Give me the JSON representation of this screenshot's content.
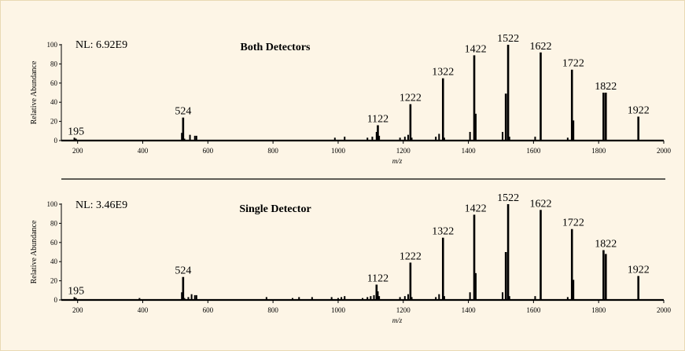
{
  "chart_data": [
    {
      "type": "bar",
      "title": "Both Detectors",
      "annotation": "NL: 6.92E9",
      "xlabel": "m/z",
      "ylabel": "Relative Abundance",
      "xlim": [
        150,
        2000
      ],
      "ylim": [
        0,
        100
      ],
      "xticks": [
        200,
        400,
        600,
        800,
        1000,
        1200,
        1400,
        1600,
        1800,
        2000
      ],
      "yticks": [
        0,
        20,
        40,
        60,
        80,
        100
      ],
      "peaks": [
        {
          "x": 190,
          "y": 3
        },
        {
          "x": 195,
          "y": 2
        },
        {
          "x": 520,
          "y": 8
        },
        {
          "x": 524,
          "y": 24
        },
        {
          "x": 528,
          "y": 2
        },
        {
          "x": 545,
          "y": 6
        },
        {
          "x": 560,
          "y": 5
        },
        {
          "x": 565,
          "y": 5
        },
        {
          "x": 990,
          "y": 3
        },
        {
          "x": 1020,
          "y": 4
        },
        {
          "x": 1090,
          "y": 3
        },
        {
          "x": 1105,
          "y": 4
        },
        {
          "x": 1118,
          "y": 9
        },
        {
          "x": 1122,
          "y": 16
        },
        {
          "x": 1126,
          "y": 5
        },
        {
          "x": 1190,
          "y": 3
        },
        {
          "x": 1205,
          "y": 4
        },
        {
          "x": 1215,
          "y": 6
        },
        {
          "x": 1222,
          "y": 38
        },
        {
          "x": 1226,
          "y": 3
        },
        {
          "x": 1300,
          "y": 4
        },
        {
          "x": 1310,
          "y": 7
        },
        {
          "x": 1322,
          "y": 65
        },
        {
          "x": 1326,
          "y": 3
        },
        {
          "x": 1405,
          "y": 9
        },
        {
          "x": 1418,
          "y": 89
        },
        {
          "x": 1422,
          "y": 28
        },
        {
          "x": 1505,
          "y": 9
        },
        {
          "x": 1515,
          "y": 49
        },
        {
          "x": 1522,
          "y": 100
        },
        {
          "x": 1526,
          "y": 4
        },
        {
          "x": 1605,
          "y": 4
        },
        {
          "x": 1622,
          "y": 92
        },
        {
          "x": 1705,
          "y": 3
        },
        {
          "x": 1718,
          "y": 74
        },
        {
          "x": 1722,
          "y": 21
        },
        {
          "x": 1815,
          "y": 50
        },
        {
          "x": 1822,
          "y": 50
        },
        {
          "x": 1922,
          "y": 25
        }
      ],
      "peak_labels": [
        {
          "x": 195,
          "y": 3,
          "label": "195"
        },
        {
          "x": 524,
          "y": 24,
          "label": "524"
        },
        {
          "x": 1122,
          "y": 16,
          "label": "1122"
        },
        {
          "x": 1222,
          "y": 38,
          "label": "1222"
        },
        {
          "x": 1322,
          "y": 65,
          "label": "1322"
        },
        {
          "x": 1422,
          "y": 89,
          "label": "1422"
        },
        {
          "x": 1522,
          "y": 100,
          "label": "1522"
        },
        {
          "x": 1622,
          "y": 92,
          "label": "1622"
        },
        {
          "x": 1722,
          "y": 74,
          "label": "1722"
        },
        {
          "x": 1822,
          "y": 50,
          "label": "1822"
        },
        {
          "x": 1922,
          "y": 25,
          "label": "1922"
        }
      ]
    },
    {
      "type": "bar",
      "title": "Single Detector",
      "annotation": "NL: 3.46E9",
      "xlabel": "m/z",
      "ylabel": "Relative Abundance",
      "xlim": [
        150,
        2000
      ],
      "ylim": [
        0,
        100
      ],
      "xticks": [
        200,
        400,
        600,
        800,
        1000,
        1200,
        1400,
        1600,
        1800,
        2000
      ],
      "yticks": [
        0,
        20,
        40,
        60,
        80,
        100
      ],
      "peaks": [
        {
          "x": 190,
          "y": 3
        },
        {
          "x": 195,
          "y": 2
        },
        {
          "x": 390,
          "y": 2
        },
        {
          "x": 520,
          "y": 8
        },
        {
          "x": 524,
          "y": 24
        },
        {
          "x": 528,
          "y": 2
        },
        {
          "x": 540,
          "y": 3
        },
        {
          "x": 550,
          "y": 6
        },
        {
          "x": 560,
          "y": 5
        },
        {
          "x": 565,
          "y": 5
        },
        {
          "x": 780,
          "y": 3
        },
        {
          "x": 860,
          "y": 2
        },
        {
          "x": 880,
          "y": 3
        },
        {
          "x": 920,
          "y": 3
        },
        {
          "x": 980,
          "y": 3
        },
        {
          "x": 1000,
          "y": 2
        },
        {
          "x": 1010,
          "y": 3
        },
        {
          "x": 1020,
          "y": 4
        },
        {
          "x": 1075,
          "y": 2
        },
        {
          "x": 1090,
          "y": 3
        },
        {
          "x": 1100,
          "y": 4
        },
        {
          "x": 1110,
          "y": 5
        },
        {
          "x": 1118,
          "y": 16
        },
        {
          "x": 1122,
          "y": 9
        },
        {
          "x": 1126,
          "y": 4
        },
        {
          "x": 1190,
          "y": 3
        },
        {
          "x": 1205,
          "y": 4
        },
        {
          "x": 1215,
          "y": 6
        },
        {
          "x": 1222,
          "y": 39
        },
        {
          "x": 1226,
          "y": 3
        },
        {
          "x": 1300,
          "y": 3
        },
        {
          "x": 1310,
          "y": 6
        },
        {
          "x": 1322,
          "y": 65
        },
        {
          "x": 1326,
          "y": 4
        },
        {
          "x": 1405,
          "y": 8
        },
        {
          "x": 1418,
          "y": 89
        },
        {
          "x": 1422,
          "y": 28
        },
        {
          "x": 1505,
          "y": 8
        },
        {
          "x": 1515,
          "y": 50
        },
        {
          "x": 1522,
          "y": 100
        },
        {
          "x": 1526,
          "y": 4
        },
        {
          "x": 1605,
          "y": 4
        },
        {
          "x": 1622,
          "y": 94
        },
        {
          "x": 1705,
          "y": 3
        },
        {
          "x": 1718,
          "y": 74
        },
        {
          "x": 1722,
          "y": 21
        },
        {
          "x": 1815,
          "y": 52
        },
        {
          "x": 1822,
          "y": 48
        },
        {
          "x": 1922,
          "y": 25
        }
      ],
      "peak_labels": [
        {
          "x": 195,
          "y": 3,
          "label": "195"
        },
        {
          "x": 524,
          "y": 24,
          "label": "524"
        },
        {
          "x": 1122,
          "y": 16,
          "label": "1122"
        },
        {
          "x": 1222,
          "y": 39,
          "label": "1222"
        },
        {
          "x": 1322,
          "y": 65,
          "label": "1322"
        },
        {
          "x": 1422,
          "y": 89,
          "label": "1422"
        },
        {
          "x": 1522,
          "y": 100,
          "label": "1522"
        },
        {
          "x": 1622,
          "y": 94,
          "label": "1622"
        },
        {
          "x": 1722,
          "y": 74,
          "label": "1722"
        },
        {
          "x": 1822,
          "y": 52,
          "label": "1822"
        },
        {
          "x": 1922,
          "y": 25,
          "label": "1922"
        }
      ]
    }
  ]
}
